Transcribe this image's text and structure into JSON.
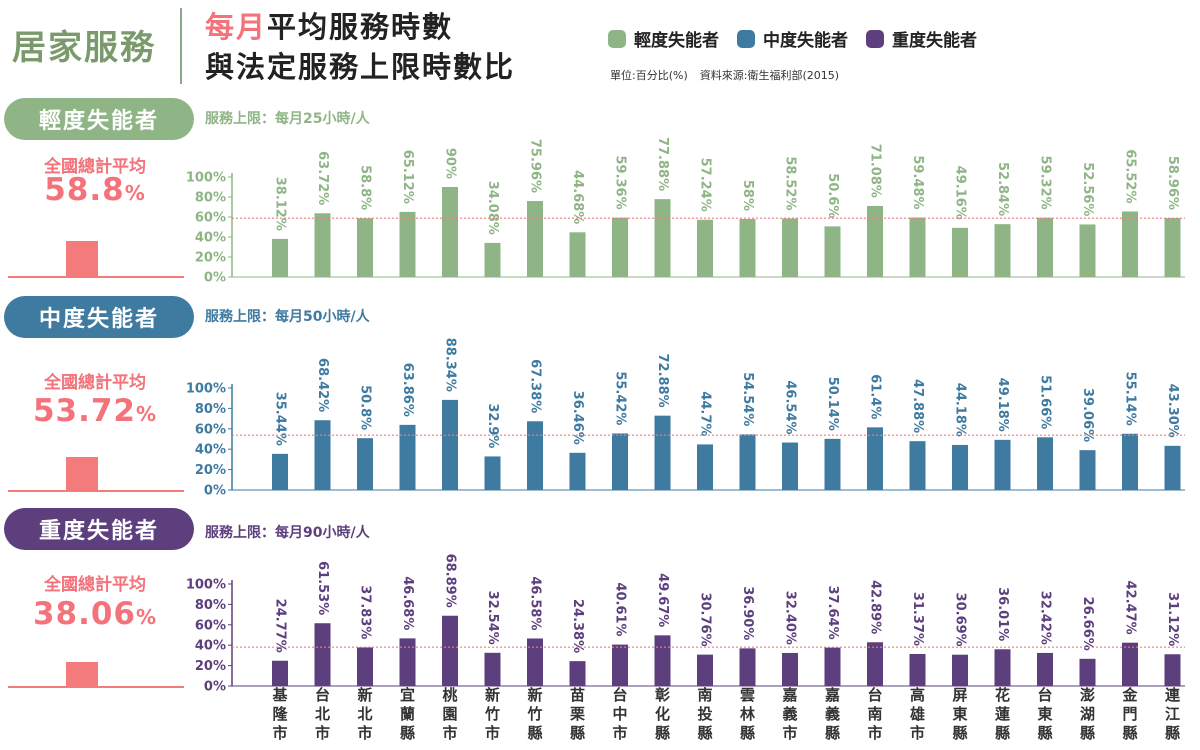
{
  "header": {
    "brand": "居家服務",
    "title_highlight": "每月",
    "title_rest": "平均服務時數",
    "title_line2": "與法定服務上限時數比",
    "unit_note": "單位:百分比(%)",
    "source_note": "資料來源:衛生福利部(2015)"
  },
  "legend": [
    {
      "label": "輕度失能者",
      "color": "#8fb586"
    },
    {
      "label": "中度失能者",
      "color": "#3f7aa0"
    },
    {
      "label": "重度失能者",
      "color": "#5d3f7e"
    }
  ],
  "panels": [
    {
      "name": "輕度失能者",
      "limit": "服務上限：每月25小時/人",
      "avg_label": "全國總計平均",
      "avg_number": "58.8",
      "avg_suffix": "%",
      "color": "#8fb586",
      "pill_color": "#8fb586"
    },
    {
      "name": "中度失能者",
      "limit": "服務上限：每月50小時/人",
      "avg_label": "全國總計平均",
      "avg_number": "53.72",
      "avg_suffix": "%",
      "color": "#3f7aa0",
      "pill_color": "#3f7aa0"
    },
    {
      "name": "重度失能者",
      "limit": "服務上限：每月90小時/人",
      "avg_label": "全國總計平均",
      "avg_number": "38.06",
      "avg_suffix": "%",
      "color": "#5d3f7e",
      "pill_color": "#5d3f7e"
    }
  ],
  "chart_data": [
    {
      "type": "bar",
      "title": "輕度失能者",
      "categories": [
        "基隆市",
        "台北市",
        "新北市",
        "宜蘭縣",
        "桃園市",
        "新竹市",
        "新竹縣",
        "苗栗縣",
        "台中市",
        "彰化縣",
        "南投縣",
        "雲林縣",
        "嘉義市",
        "嘉義縣",
        "台南市",
        "高雄市",
        "屏東縣",
        "花蓮縣",
        "台東縣",
        "澎湖縣",
        "金門縣",
        "連江縣"
      ],
      "values": [
        38.12,
        63.72,
        58.8,
        65.12,
        90,
        34.08,
        75.96,
        44.68,
        59.36,
        77.88,
        57.24,
        58,
        58.52,
        50.6,
        71.08,
        59.48,
        49.16,
        52.84,
        59.32,
        52.56,
        65.52,
        58.96
      ],
      "value_labels": [
        "38.12%",
        "63.72%",
        "58.8%",
        "65.12%",
        "90%",
        "34.08%",
        "75.96%",
        "44.68%",
        "59.36%",
        "77.88%",
        "57.24%",
        "58%",
        "58.52%",
        "50.6%",
        "71.08%",
        "59.48%",
        "49.16%",
        "52.84%",
        "59.32%",
        "52.56%",
        "65.52%",
        "58.96%"
      ],
      "average": 58.8,
      "yticks": [
        "0%",
        "20%",
        "40%",
        "60%",
        "80%",
        "100%"
      ],
      "ylim": [
        0,
        100
      ]
    },
    {
      "type": "bar",
      "title": "中度失能者",
      "categories": [
        "基隆市",
        "台北市",
        "新北市",
        "宜蘭縣",
        "桃園市",
        "新竹市",
        "新竹縣",
        "苗栗縣",
        "台中市",
        "彰化縣",
        "南投縣",
        "雲林縣",
        "嘉義市",
        "嘉義縣",
        "台南市",
        "高雄市",
        "屏東縣",
        "花蓮縣",
        "台東縣",
        "澎湖縣",
        "金門縣",
        "連江縣"
      ],
      "values": [
        35.44,
        68.42,
        50.8,
        63.86,
        88.34,
        32.9,
        67.38,
        36.46,
        55.42,
        72.88,
        44.7,
        54.54,
        46.54,
        50.14,
        61.4,
        47.88,
        44.18,
        49.18,
        51.66,
        39.06,
        55.14,
        43.3
      ],
      "value_labels": [
        "35.44%",
        "68.42%",
        "50.8%",
        "63.86%",
        "88.34%",
        "32.9%",
        "67.38%",
        "36.46%",
        "55.42%",
        "72.88%",
        "44.7%",
        "54.54%",
        "46.54%",
        "50.14%",
        "61.4%",
        "47.88%",
        "44.18%",
        "49.18%",
        "51.66%",
        "39.06%",
        "55.14%",
        "43.30%"
      ],
      "average": 53.72,
      "yticks": [
        "0%",
        "20%",
        "40%",
        "60%",
        "80%",
        "100%"
      ],
      "ylim": [
        0,
        100
      ]
    },
    {
      "type": "bar",
      "title": "重度失能者",
      "categories": [
        "基隆市",
        "台北市",
        "新北市",
        "宜蘭縣",
        "桃園市",
        "新竹市",
        "新竹縣",
        "苗栗縣",
        "台中市",
        "彰化縣",
        "南投縣",
        "雲林縣",
        "嘉義市",
        "嘉義縣",
        "台南市",
        "高雄市",
        "屏東縣",
        "花蓮縣",
        "台東縣",
        "澎湖縣",
        "金門縣",
        "連江縣"
      ],
      "values": [
        24.77,
        61.53,
        37.83,
        46.68,
        68.89,
        32.54,
        46.58,
        24.38,
        40.61,
        49.67,
        30.76,
        36.9,
        32.4,
        37.64,
        42.89,
        31.37,
        30.69,
        36.01,
        32.42,
        26.66,
        42.47,
        31.12
      ],
      "value_labels": [
        "24.77%",
        "61.53%",
        "37.83%",
        "46.68%",
        "68.89%",
        "32.54%",
        "46.58%",
        "24.38%",
        "40.61%",
        "49.67%",
        "30.76%",
        "36.90%",
        "32.40%",
        "37.64%",
        "42.89%",
        "31.37%",
        "30.69%",
        "36.01%",
        "32.42%",
        "26.66%",
        "42.47%",
        "31.12%"
      ],
      "average": 38.06,
      "yticks": [
        "0%",
        "20%",
        "40%",
        "60%",
        "80%",
        "100%"
      ],
      "ylim": [
        0,
        100
      ]
    }
  ]
}
